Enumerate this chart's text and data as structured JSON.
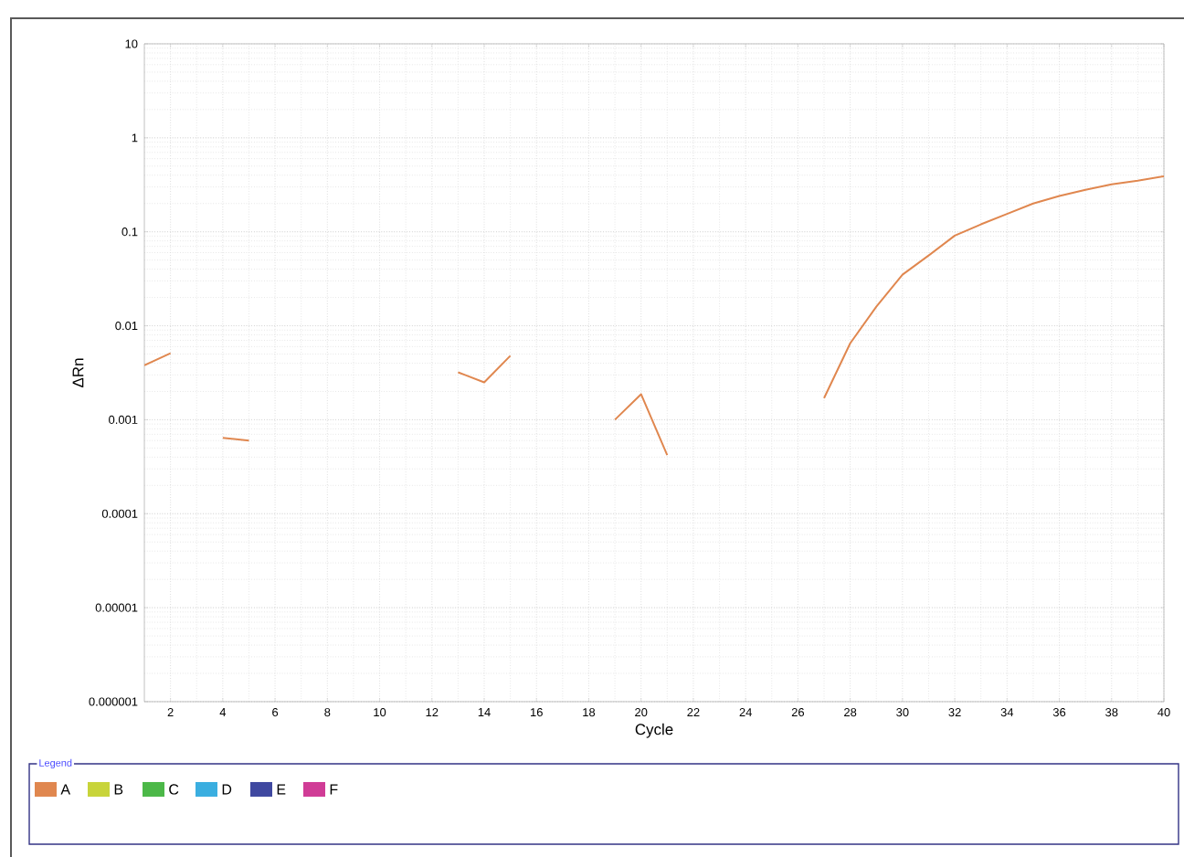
{
  "chart_data": {
    "type": "line",
    "xlabel": "Cycle",
    "ylabel": "ΔRn",
    "legend_title": "Legend",
    "x": [
      1,
      2,
      3,
      4,
      5,
      6,
      7,
      8,
      9,
      10,
      11,
      12,
      13,
      14,
      15,
      16,
      17,
      18,
      19,
      20,
      21,
      22,
      23,
      24,
      25,
      26,
      27,
      28,
      29,
      30,
      31,
      32,
      33,
      34,
      35,
      36,
      37,
      38,
      39,
      40
    ],
    "series": [
      {
        "name": "A",
        "color": "#e0874f",
        "values": [
          0.0038,
          0.0051,
          null,
          0.00064,
          0.0006,
          null,
          null,
          null,
          null,
          null,
          null,
          null,
          0.0032,
          0.0025,
          0.0048,
          null,
          null,
          null,
          0.001,
          0.00187,
          0.00042,
          null,
          null,
          null,
          null,
          null,
          0.0017,
          0.0065,
          0.016,
          0.035,
          0.056,
          0.091,
          0.12,
          0.155,
          0.2,
          0.24,
          0.28,
          0.32,
          0.35,
          0.39
        ]
      },
      {
        "name": "B",
        "color": "#c8d43a",
        "values": [
          null,
          null,
          null,
          null,
          null,
          null,
          null,
          null,
          null,
          null,
          null,
          null,
          null,
          null,
          null,
          null,
          null,
          null,
          null,
          null,
          null,
          null,
          null,
          null,
          null,
          null,
          null,
          null,
          null,
          null,
          null,
          null,
          null,
          null,
          null,
          null,
          null,
          null,
          null,
          null
        ]
      },
      {
        "name": "C",
        "color": "#4cb848",
        "values": [
          null,
          null,
          null,
          null,
          null,
          null,
          null,
          null,
          null,
          null,
          null,
          null,
          null,
          null,
          null,
          null,
          null,
          null,
          null,
          null,
          null,
          null,
          null,
          null,
          null,
          null,
          null,
          null,
          null,
          null,
          null,
          null,
          null,
          null,
          null,
          null,
          null,
          null,
          null,
          null
        ]
      },
      {
        "name": "D",
        "color": "#3aaee0",
        "values": [
          null,
          null,
          null,
          null,
          null,
          null,
          null,
          null,
          null,
          null,
          null,
          null,
          null,
          null,
          null,
          null,
          null,
          null,
          null,
          null,
          null,
          null,
          null,
          null,
          null,
          null,
          null,
          null,
          null,
          null,
          null,
          null,
          null,
          null,
          null,
          null,
          null,
          null,
          null,
          null
        ]
      },
      {
        "name": "E",
        "color": "#3f48a0",
        "values": [
          null,
          null,
          null,
          null,
          null,
          null,
          null,
          null,
          null,
          null,
          null,
          null,
          null,
          null,
          null,
          null,
          null,
          null,
          null,
          null,
          null,
          null,
          null,
          null,
          null,
          null,
          null,
          null,
          null,
          null,
          null,
          null,
          null,
          null,
          null,
          null,
          null,
          null,
          null,
          null
        ]
      },
      {
        "name": "F",
        "color": "#d03c96",
        "values": [
          null,
          null,
          null,
          null,
          null,
          null,
          null,
          null,
          null,
          null,
          null,
          null,
          null,
          null,
          null,
          null,
          null,
          null,
          null,
          null,
          null,
          null,
          null,
          null,
          null,
          null,
          null,
          null,
          null,
          null,
          null,
          null,
          null,
          null,
          null,
          null,
          null,
          null,
          null,
          null
        ]
      }
    ],
    "xlim": [
      1,
      40
    ],
    "xticks": [
      2,
      4,
      6,
      8,
      10,
      12,
      14,
      16,
      18,
      20,
      22,
      24,
      26,
      28,
      30,
      32,
      34,
      36,
      38,
      40
    ],
    "ylim": [
      1e-06,
      10
    ],
    "yticks": [
      {
        "value": 1e-06,
        "label": "0.000001"
      },
      {
        "value": 1e-05,
        "label": "0.00001"
      },
      {
        "value": 0.0001,
        "label": "0.0001"
      },
      {
        "value": 0.001,
        "label": "0.001"
      },
      0.01,
      0.1,
      1,
      10
    ],
    "log": "y",
    "grid": true,
    "legend": "bottom",
    "marker": "none",
    "line_style": "solid"
  }
}
